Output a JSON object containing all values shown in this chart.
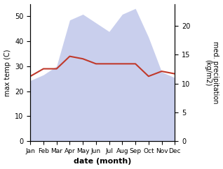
{
  "months": [
    "Jan",
    "Feb",
    "Mar",
    "Apr",
    "May",
    "Jun",
    "Jul",
    "Aug",
    "Sep",
    "Oct",
    "Nov",
    "Dec"
  ],
  "max_temp": [
    26,
    29,
    29,
    34,
    33,
    31,
    31,
    31,
    31,
    26,
    28,
    27
  ],
  "precipitation_raw": [
    10.5,
    11.5,
    13,
    21,
    22,
    20.5,
    19,
    22,
    23,
    18,
    12,
    11
  ],
  "temp_ylim": [
    0,
    55
  ],
  "precip_ylim_raw": [
    0,
    23.8
  ],
  "temp_color": "#c0392b",
  "precip_fill_color": "#b8c0e8",
  "xlabel": "date (month)",
  "ylabel_left": "max temp (C)",
  "ylabel_right": "med. precipitation\n(kg/m2)",
  "background_color": "#ffffff",
  "left_ticks": [
    0,
    10,
    20,
    30,
    40,
    50
  ],
  "right_ticks": [
    0,
    5,
    10,
    15,
    20
  ]
}
